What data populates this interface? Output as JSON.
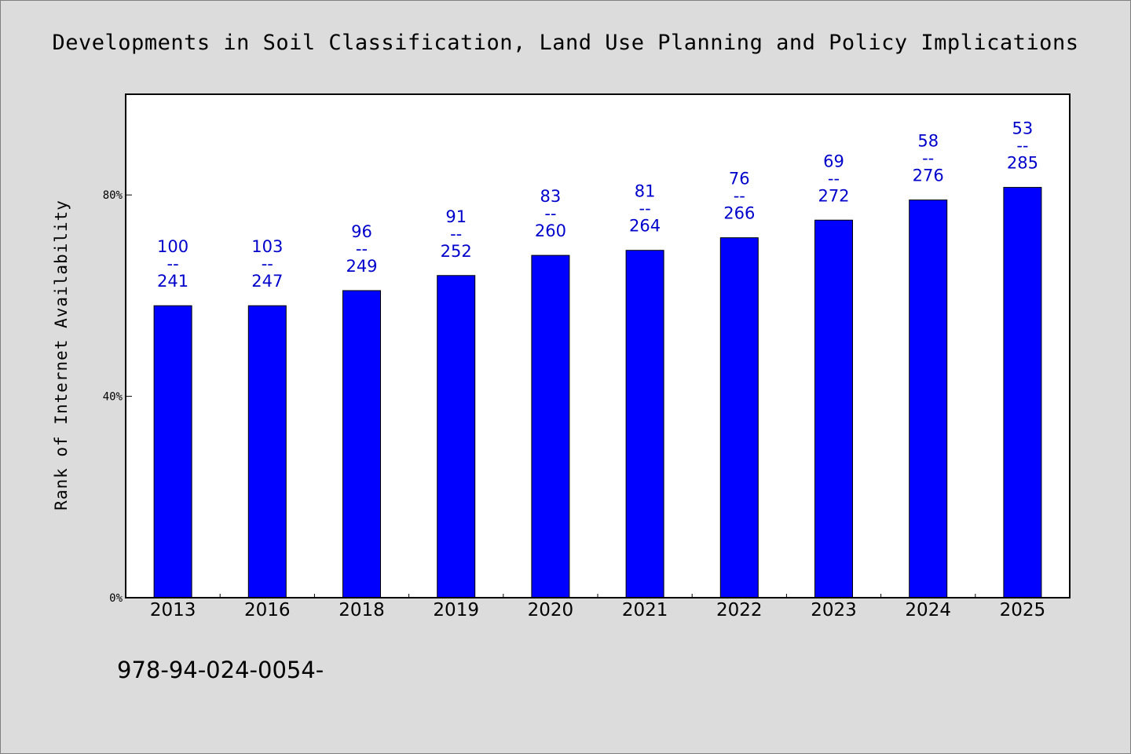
{
  "chart_data": {
    "type": "bar",
    "title": "Developments in Soil Classification, Land Use Planning and Policy Implications",
    "xlabel": "",
    "ylabel": "Rank of Internet Availability",
    "categories": [
      "2013",
      "2016",
      "2018",
      "2019",
      "2020",
      "2021",
      "2022",
      "2023",
      "2024",
      "2025"
    ],
    "values": [
      58.0,
      58.0,
      61.0,
      64.0,
      68.0,
      69.0,
      71.5,
      75.0,
      79.0,
      81.5
    ],
    "labels_top": [
      "100",
      "103",
      "96",
      "91",
      "83",
      "81",
      "76",
      "69",
      "58",
      "53"
    ],
    "label_separator": "--",
    "labels_bottom": [
      "241",
      "247",
      "249",
      "252",
      "260",
      "264",
      "266",
      "272",
      "276",
      "285"
    ],
    "ylim": [
      0,
      100
    ],
    "yticks": [
      0,
      40,
      80
    ],
    "ytick_labels": [
      "0%",
      "40%",
      "80%"
    ],
    "grid": false,
    "bar_color": "#0000ff"
  },
  "footer": {
    "text": "978-94-024-0054-"
  }
}
